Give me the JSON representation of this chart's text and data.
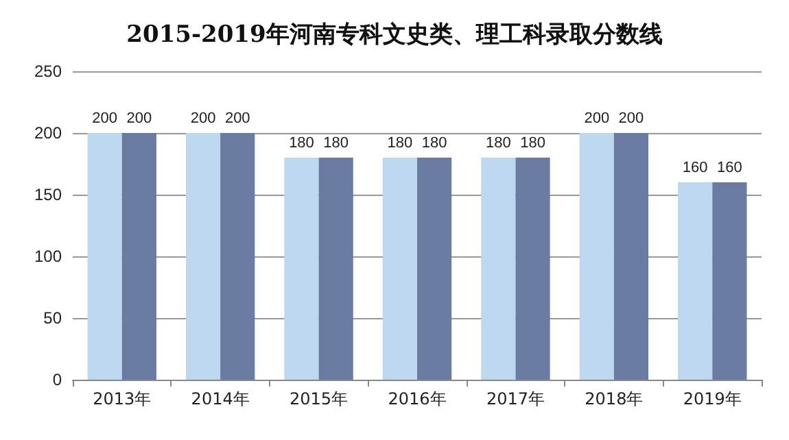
{
  "chart_data": {
    "type": "bar",
    "title": "2015-2019年河南专科文史类、理工科录取分数线",
    "categories": [
      "2013年",
      "2014年",
      "2015年",
      "2016年",
      "2017年",
      "2018年",
      "2019年"
    ],
    "series": [
      {
        "color": "#bdd7ee",
        "values": [
          200,
          200,
          180,
          180,
          180,
          200,
          160
        ]
      },
      {
        "color": "#6a7ba2",
        "values": [
          200,
          200,
          180,
          180,
          180,
          200,
          160
        ]
      }
    ],
    "ylim": [
      0,
      250
    ],
    "yticks": [
      0,
      50,
      100,
      150,
      200,
      250
    ],
    "grid": "y",
    "data_labels": true
  }
}
